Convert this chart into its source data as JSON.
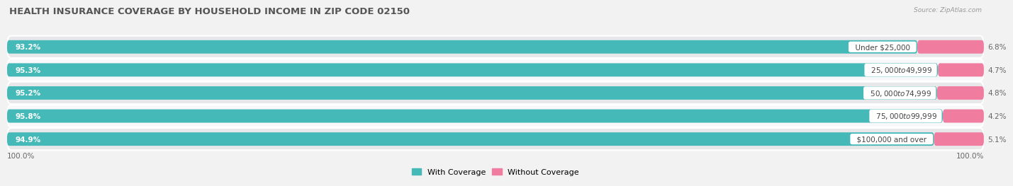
{
  "title": "HEALTH INSURANCE COVERAGE BY HOUSEHOLD INCOME IN ZIP CODE 02150",
  "source": "Source: ZipAtlas.com",
  "categories": [
    "Under $25,000",
    "$25,000 to $49,999",
    "$50,000 to $74,999",
    "$75,000 to $99,999",
    "$100,000 and over"
  ],
  "with_coverage": [
    93.2,
    95.3,
    95.2,
    95.8,
    94.9
  ],
  "without_coverage": [
    6.8,
    4.7,
    4.8,
    4.2,
    5.1
  ],
  "color_with": "#45b8b8",
  "color_without": "#f07ca0",
  "bg_color": "#f2f2f2",
  "row_bg_odd": "#e8e8ea",
  "row_bg_even": "#f8f8fa",
  "title_fontsize": 9.5,
  "label_fontsize": 7.5,
  "legend_fontsize": 8,
  "axis_label_fontsize": 7.5,
  "bottom_labels": [
    "100.0%",
    "100.0%"
  ]
}
